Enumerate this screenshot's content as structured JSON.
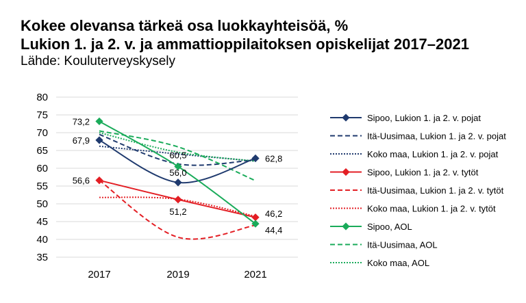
{
  "title_line1": "Kokee olevansa tärkeä osa luokkayhteisöä, %",
  "title_line2": "Lukion 1. ja 2. v. ja ammattioppilaitoksen opiskelijat 2017–2021",
  "source": "Lähde: Kouluterveyskysely",
  "chart_data": {
    "type": "line",
    "categories": [
      "2017",
      "2019",
      "2021"
    ],
    "ylim": [
      35,
      80
    ],
    "yticks": [
      "35",
      "40",
      "45",
      "50",
      "55",
      "60",
      "65",
      "70",
      "75",
      "80"
    ],
    "grid": true,
    "legend_position": "right",
    "series": [
      {
        "name": "Sipoo, Lukion 1. ja 2. v. pojat",
        "values": [
          67.9,
          56.0,
          62.8
        ],
        "color": "#1f3a6e",
        "style": "solid",
        "marker": true,
        "labels": [
          "67,9",
          "56,0",
          "62,8"
        ]
      },
      {
        "name": "Itä-Uusimaa, Lukion 1. ja 2. v. pojat",
        "values": [
          69.5,
          61.2,
          62.4
        ],
        "color": "#1f3a6e",
        "style": "dashed",
        "marker": false,
        "labels": []
      },
      {
        "name": "Koko maa, Lukion 1. ja 2. v. pojat",
        "values": [
          66.2,
          64.0,
          62.0
        ],
        "color": "#1f3a6e",
        "style": "dotted",
        "marker": false,
        "labels": []
      },
      {
        "name": "Sipoo, Lukion 1. ja 2. v. tytöt",
        "values": [
          56.6,
          51.2,
          46.2
        ],
        "color": "#e31e24",
        "style": "solid",
        "marker": true,
        "labels": [
          "56,6",
          "51,2",
          "46,2"
        ]
      },
      {
        "name": "Itä-Uusimaa, Lukion 1. ja 2. v. tytöt",
        "values": [
          56.6,
          40.6,
          44.0
        ],
        "color": "#e31e24",
        "style": "dashed",
        "marker": false,
        "labels": []
      },
      {
        "name": "Koko maa, Lukion 1. ja 2. v. tytöt",
        "values": [
          51.8,
          51.3,
          46.5
        ],
        "color": "#e31e24",
        "style": "dotted",
        "marker": false,
        "labels": []
      },
      {
        "name": "Sipoo, AOL",
        "values": [
          73.2,
          60.5,
          44.4
        ],
        "color": "#1aab5a",
        "style": "solid",
        "marker": true,
        "labels": [
          "73,2",
          "60,5",
          "44,4"
        ]
      },
      {
        "name": "Itä-Uusimaa, AOL",
        "values": [
          70.5,
          66.0,
          56.5
        ],
        "color": "#1aab5a",
        "style": "dashed",
        "marker": false,
        "labels": []
      },
      {
        "name": "Koko maa, AOL",
        "values": [
          70.0,
          64.5,
          62.0
        ],
        "color": "#1aab5a",
        "style": "dotted",
        "marker": false,
        "labels": []
      }
    ]
  }
}
